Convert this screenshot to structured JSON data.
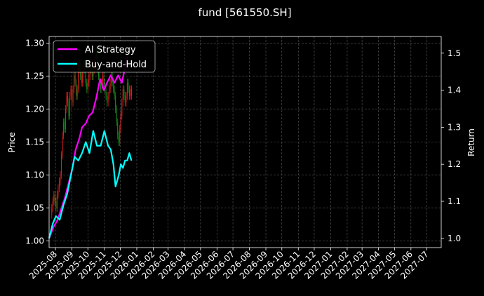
{
  "chart_data": {
    "type": "line",
    "title": "fund [561550.SH]",
    "ylabel_left": "Price",
    "ylabel_right": "Return",
    "xlabel": "",
    "grid": true,
    "legend_position": "top-left",
    "x_ticks": [
      "2025-08",
      "2025-09",
      "2025-10",
      "2025-11",
      "2025-12",
      "2026-01",
      "2026-02",
      "2026-03",
      "2026-04",
      "2026-05",
      "2026-06",
      "2026-07",
      "2026-08",
      "2026-09",
      "2026-10",
      "2026-11",
      "2026-12",
      "2027-01",
      "2027-02",
      "2027-03",
      "2027-04",
      "2027-05",
      "2027-06",
      "2027-07"
    ],
    "y_left_ticks": [
      "1.00",
      "1.05",
      "1.10",
      "1.15",
      "1.20",
      "1.25",
      "1.30"
    ],
    "y_right_ticks": [
      "1.0",
      "1.1",
      "1.2",
      "1.3",
      "1.4",
      "1.5"
    ],
    "y_left_range": [
      0.99,
      1.31
    ],
    "y_right_range": [
      0.975,
      1.545
    ],
    "x_range": [
      "2025-07-20",
      "2027-07-28"
    ],
    "candlestick": {
      "dates": [
        "2025-07-25",
        "2025-07-27",
        "2025-07-29",
        "2025-07-31",
        "2025-08-02",
        "2025-08-04",
        "2025-08-06",
        "2025-08-08",
        "2025-08-10",
        "2025-08-12",
        "2025-08-14",
        "2025-08-16",
        "2025-08-18",
        "2025-08-20",
        "2025-08-22",
        "2025-08-24",
        "2025-08-26",
        "2025-08-28",
        "2025-08-30",
        "2025-09-01",
        "2025-09-03",
        "2025-09-05",
        "2025-09-07",
        "2025-09-09",
        "2025-09-11",
        "2025-09-13",
        "2025-09-15",
        "2025-09-17",
        "2025-09-19",
        "2025-09-21",
        "2025-09-23",
        "2025-09-25",
        "2025-09-27",
        "2025-09-29",
        "2025-10-01",
        "2025-10-03",
        "2025-10-05",
        "2025-10-07",
        "2025-10-09",
        "2025-10-11",
        "2025-10-13",
        "2025-10-15",
        "2025-10-17",
        "2025-10-19",
        "2025-10-21",
        "2025-10-23",
        "2025-10-25",
        "2025-10-27",
        "2025-10-29",
        "2025-10-31",
        "2025-11-02",
        "2025-11-04",
        "2025-11-06",
        "2025-11-08",
        "2025-11-10",
        "2025-11-12",
        "2025-11-14",
        "2025-11-16",
        "2025-11-18",
        "2025-11-20",
        "2025-11-22",
        "2025-11-24",
        "2025-11-26",
        "2025-11-28",
        "2025-11-30",
        "2025-12-02",
        "2025-12-04",
        "2025-12-06",
        "2025-12-08",
        "2025-12-10",
        "2025-12-12",
        "2025-12-14",
        "2025-12-16",
        "2025-12-18",
        "2025-12-20",
        "2025-12-22"
      ],
      "close": [
        1.05,
        1.06,
        1.07,
        1.06,
        1.05,
        1.07,
        1.08,
        1.09,
        1.1,
        1.13,
        1.16,
        1.18,
        1.17,
        1.2,
        1.22,
        1.21,
        1.19,
        1.22,
        1.23,
        1.21,
        1.23,
        1.25,
        1.24,
        1.22,
        1.23,
        1.26,
        1.27,
        1.25,
        1.24,
        1.26,
        1.27,
        1.26,
        1.24,
        1.23,
        1.24,
        1.25,
        1.27,
        1.26,
        1.25,
        1.26,
        1.27,
        1.29,
        1.28,
        1.26,
        1.25,
        1.24,
        1.23,
        1.24,
        1.25,
        1.24,
        1.23,
        1.22,
        1.21,
        1.22,
        1.23,
        1.24,
        1.25,
        1.24,
        1.23,
        1.22,
        1.2,
        1.18,
        1.16,
        1.15,
        1.17,
        1.19,
        1.21,
        1.23,
        1.22,
        1.21,
        1.22,
        1.24,
        1.23,
        1.22,
        1.23,
        1.22
      ]
    },
    "series": [
      {
        "name": "AI Strategy",
        "color": "#ff00ff",
        "axis": "right",
        "dates": [
          "2025-07-20",
          "2025-07-28",
          "2025-08-05",
          "2025-08-12",
          "2025-08-19",
          "2025-08-26",
          "2025-09-02",
          "2025-09-08",
          "2025-09-15",
          "2025-09-20",
          "2025-09-27",
          "2025-10-03",
          "2025-10-10",
          "2025-10-17",
          "2025-10-24",
          "2025-10-31",
          "2025-11-06",
          "2025-11-13",
          "2025-11-20",
          "2025-11-27",
          "2025-12-04",
          "2025-12-11",
          "2025-12-15"
        ],
        "values": [
          1.0,
          1.03,
          1.05,
          1.08,
          1.11,
          1.15,
          1.19,
          1.24,
          1.27,
          1.3,
          1.31,
          1.33,
          1.34,
          1.38,
          1.43,
          1.4,
          1.42,
          1.44,
          1.42,
          1.44,
          1.42,
          1.47,
          1.49
        ]
      },
      {
        "name": "Buy-and-Hold",
        "color": "#00ffff",
        "axis": "right",
        "dates": [
          "2025-07-20",
          "2025-07-27",
          "2025-08-02",
          "2025-08-09",
          "2025-08-16",
          "2025-08-23",
          "2025-08-30",
          "2025-09-06",
          "2025-09-13",
          "2025-09-20",
          "2025-09-27",
          "2025-10-04",
          "2025-10-11",
          "2025-10-18",
          "2025-10-25",
          "2025-11-01",
          "2025-11-08",
          "2025-11-13",
          "2025-11-18",
          "2025-11-22",
          "2025-11-28",
          "2025-12-02",
          "2025-12-06",
          "2025-12-10",
          "2025-12-14",
          "2025-12-18",
          "2025-12-22"
        ],
        "values": [
          1.0,
          1.04,
          1.06,
          1.05,
          1.09,
          1.12,
          1.17,
          1.22,
          1.21,
          1.23,
          1.26,
          1.23,
          1.29,
          1.25,
          1.25,
          1.29,
          1.25,
          1.24,
          1.2,
          1.14,
          1.17,
          1.2,
          1.19,
          1.21,
          1.21,
          1.23,
          1.21
        ]
      }
    ]
  }
}
